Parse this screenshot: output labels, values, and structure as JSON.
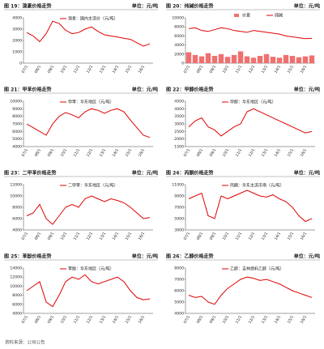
{
  "chart_data": [
    {
      "type": "line",
      "title": "图 19：溴素价格走势",
      "unit": "单位：元/吨",
      "series": [
        {
          "name": "溴素：国内主流价（元/吨）",
          "color": "#e00000",
          "values": [
            2700,
            2400,
            1900,
            2600,
            3700,
            3500,
            2900,
            2600,
            2700,
            3000,
            3200,
            2800,
            2500,
            2400,
            2300,
            2200,
            2100,
            1800,
            1500,
            1700
          ]
        }
      ],
      "categories": [
        "07/1",
        null,
        "08/1",
        null,
        "09/1",
        null,
        "10/1",
        null,
        "11/1",
        null,
        "12/1",
        null,
        "13/1",
        null,
        "14/1",
        null,
        "15/1",
        null,
        "16/1",
        null
      ],
      "ylim": [
        0,
        4000
      ],
      "yticks": [
        0,
        1000,
        2000,
        3000,
        4000
      ]
    },
    {
      "type": "combo",
      "title": "图 20：纯碱价格走势",
      "unit": "单位：元/吨",
      "series": [
        {
          "name": "价差",
          "color": "#f07070",
          "values": [
            2400,
            1800,
            1500,
            2200,
            1600,
            2000,
            1400,
            1800,
            2600,
            1500,
            1200,
            1600,
            2000,
            1400,
            1200,
            1800,
            1600,
            1300,
            1500,
            1700
          ]
        },
        {
          "name": "纯碱",
          "color": "#e00000",
          "values": [
            7600,
            7800,
            7200,
            7000,
            7400,
            7800,
            7600,
            7200,
            7000,
            6800,
            7200,
            7000,
            6800,
            6600,
            6400,
            6000,
            5800,
            5600,
            5400,
            5500
          ]
        }
      ],
      "categories": [
        "07/1",
        null,
        "08/1",
        null,
        "09/1",
        null,
        "10/1",
        null,
        "11/1",
        null,
        "12/1",
        null,
        "13/1",
        null,
        "14/1",
        null,
        "15/1",
        null,
        "16/1",
        null
      ],
      "ylim": [
        0,
        10000
      ],
      "yticks": [
        0,
        2000,
        4000,
        6000,
        8000,
        10000
      ]
    },
    {
      "type": "line",
      "title": "图 21：甲苯价格走势",
      "unit": "单位：元/吨",
      "series": [
        {
          "name": "甲苯：华东地区（元/吨）",
          "color": "#e00000",
          "values": [
            7000,
            6500,
            6000,
            5500,
            7000,
            8000,
            8500,
            8200,
            7800,
            8600,
            9000,
            8800,
            8400,
            8800,
            9000,
            8600,
            7500,
            6500,
            5500,
            5200
          ]
        }
      ],
      "categories": [
        "07/1",
        null,
        "08/1",
        null,
        "09/1",
        null,
        "10/1",
        null,
        "11/1",
        null,
        "12/1",
        null,
        "13/1",
        null,
        "14/1",
        null,
        "15/1",
        null,
        "16/1",
        null
      ],
      "ylim": [
        4000,
        10000
      ],
      "yticks": [
        4000,
        5000,
        6000,
        7000,
        8000,
        9000,
        10000
      ]
    },
    {
      "type": "line",
      "title": "图 22：甲醇价格走势",
      "unit": "单位：元/吨",
      "series": [
        {
          "name": "甲醇：华东地区（元/吨）",
          "color": "#e00000",
          "values": [
            2800,
            3200,
            3400,
            2800,
            2600,
            2200,
            2500,
            2800,
            3000,
            3800,
            4000,
            3800,
            3600,
            3400,
            3200,
            3000,
            2800,
            2600,
            2400,
            2500
          ]
        }
      ],
      "categories": [
        "07/1",
        null,
        "08/1",
        null,
        "09/1",
        null,
        "10/1",
        null,
        "11/1",
        null,
        "12/1",
        null,
        "13/1",
        null,
        "14/1",
        null,
        "15/1",
        null,
        "16/1",
        null
      ],
      "ylim": [
        1500,
        4500
      ],
      "yticks": [
        1500,
        2000,
        2500,
        3000,
        3500,
        4000,
        4500
      ]
    },
    {
      "type": "line",
      "title": "图 23：二甲苯价格走势",
      "unit": "单位：元/吨",
      "series": [
        {
          "name": "二甲苯：华东地区（元/吨）",
          "color": "#e00000",
          "values": [
            6500,
            7000,
            8500,
            6000,
            5000,
            6500,
            8000,
            8500,
            8000,
            9500,
            10000,
            9500,
            9000,
            9500,
            9200,
            8800,
            8000,
            7000,
            6000,
            6200
          ]
        }
      ],
      "categories": [
        "07/1",
        null,
        "08/1",
        null,
        "09/1",
        null,
        "10/1",
        null,
        "11/1",
        null,
        "12/1",
        null,
        "13/1",
        null,
        "14/1",
        null,
        "15/1",
        null,
        "16/1",
        null
      ],
      "ylim": [
        4000,
        12000
      ],
      "yticks": [
        4000,
        6000,
        8000,
        10000,
        12000
      ]
    },
    {
      "type": "line",
      "title": "图 24：丙酮价格走势",
      "unit": "单位：元/吨",
      "series": [
        {
          "name": "丙酮：华东主流市场（元/吨）",
          "color": "#e00000",
          "values": [
            8500,
            9000,
            9500,
            5500,
            5000,
            9000,
            8500,
            9000,
            9500,
            10000,
            9500,
            9000,
            8800,
            9200,
            8500,
            8000,
            7000,
            5500,
            4500,
            5000
          ]
        }
      ],
      "categories": [
        "07/1",
        null,
        "08/1",
        null,
        "09/1",
        null,
        "10/1",
        null,
        "11/1",
        null,
        "12/1",
        null,
        "13/1",
        null,
        "14/1",
        null,
        "15/1",
        null,
        "16/1",
        null
      ],
      "ylim": [
        3000,
        11000
      ],
      "yticks": [
        3000,
        5000,
        7000,
        9000,
        11000
      ]
    },
    {
      "type": "line",
      "title": "图 25：苯酚价格走势",
      "unit": "单位：元/吨",
      "series": [
        {
          "name": "苯酚：华东地区（元/吨）",
          "color": "#e00000",
          "values": [
            9000,
            10000,
            11000,
            6500,
            5500,
            8000,
            11000,
            12000,
            11500,
            12500,
            11000,
            10500,
            11000,
            11500,
            12000,
            11000,
            9000,
            7500,
            7000,
            7200
          ]
        }
      ],
      "categories": [
        "07/1",
        null,
        "08/1",
        null,
        "09/1",
        null,
        "10/1",
        null,
        "11/1",
        null,
        "12/1",
        null,
        "13/1",
        null,
        "14/1",
        null,
        "15/1",
        null,
        "16/1",
        null
      ],
      "ylim": [
        4000,
        14000
      ],
      "yticks": [
        4000,
        6000,
        8000,
        10000,
        12000,
        14000
      ]
    },
    {
      "type": "line",
      "title": "图 26：乙醇价格走势",
      "unit": "单位：元/吨",
      "series": [
        {
          "name": "乙醇：吉林燃料乙醇（元/吨）",
          "color": "#e00000",
          "values": [
            5600,
            5400,
            5500,
            5000,
            4800,
            5600,
            6200,
            6600,
            7000,
            7200,
            7100,
            6900,
            7000,
            6800,
            6600,
            6300,
            6000,
            5800,
            5600,
            5400
          ]
        }
      ],
      "categories": [
        "07/1",
        null,
        "08/1",
        null,
        "09/1",
        null,
        "10/1",
        null,
        "11/1",
        null,
        "12/1",
        null,
        "13/1",
        null,
        "14/1",
        null,
        "15/1",
        null,
        "16/1",
        null
      ],
      "ylim": [
        4000,
        8000
      ],
      "yticks": [
        4000,
        5000,
        6000,
        7000,
        8000
      ]
    }
  ],
  "source": "资料来源：公司公告"
}
